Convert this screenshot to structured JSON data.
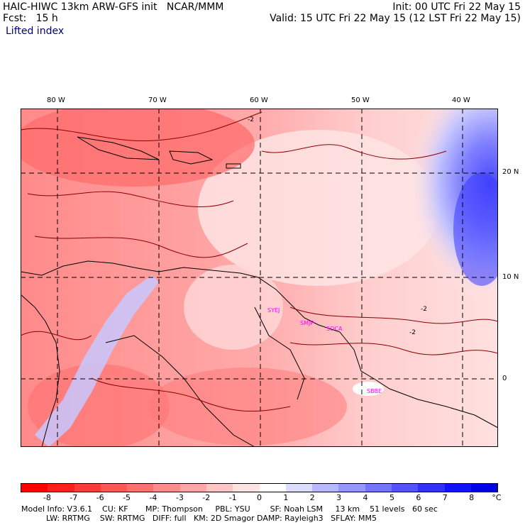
{
  "header": {
    "model_line": "HAIC-HIWC 13km ARW-GFS init   NCAR/MMM",
    "fcst_line": "Fcst:   15 h",
    "field_name": "Lifted index",
    "init_line": "Init: 00 UTC Fri 22 May 15",
    "valid_line": "Valid: 15 UTC Fri 22 May 15 (12 LST Fri 22 May 15)"
  },
  "map": {
    "longitude_labels": [
      "80 W",
      "70 W",
      "60 W",
      "50 W",
      "40 W"
    ],
    "latitude_labels": [
      "20 N",
      "10 N",
      "0"
    ],
    "stations": [
      "SYEJ",
      "SMJP",
      "SOCA",
      "SBBE"
    ],
    "contour_labels": [
      "-2",
      "-2",
      "-2"
    ]
  },
  "colorbar": {
    "labels": [
      "-8",
      "-7",
      "-6",
      "-5",
      "-4",
      "-3",
      "-2",
      "-1",
      "0",
      "1",
      "2",
      "3",
      "4",
      "5",
      "6",
      "7",
      "8"
    ],
    "unit": "°C",
    "colors": [
      "#ff0000",
      "#ff1e1e",
      "#ff3a3a",
      "#ff5656",
      "#ff7070",
      "#ff8c8c",
      "#ffa6a6",
      "#ffc4c4",
      "#ffe2e2",
      "#ffffff",
      "#dcdcff",
      "#b8b8ff",
      "#9696ff",
      "#7474ff",
      "#5252ff",
      "#3030ff",
      "#1212ff",
      "#0000e6"
    ]
  },
  "model_info": {
    "line1": "Model Info: V3.6.1    CU: KF       MP: Thompson     PBL: YSU        SF: Noah LSM     13 km    51 levels   60 sec",
    "line2": "          LW: RRTMG    SW: RRTMG   DIFF: full   KM: 2D Smagor DAMP: Rayleigh3   SFLAY: MM5"
  }
}
